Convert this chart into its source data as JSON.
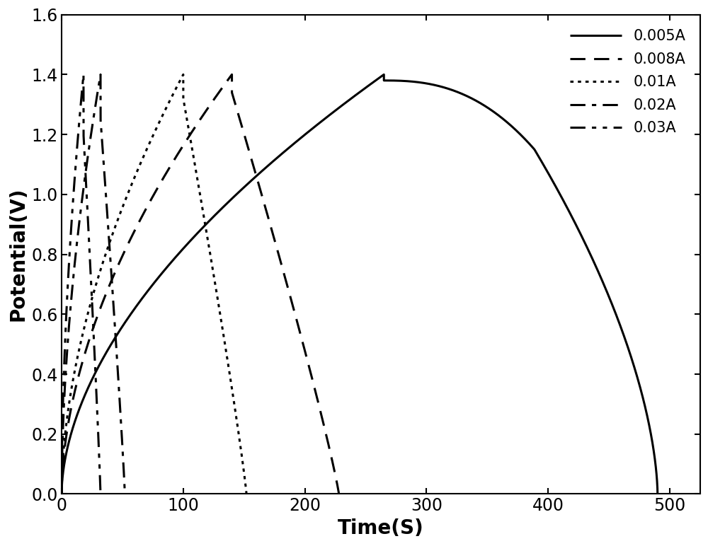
{
  "xlabel": "Time(S)",
  "ylabel": "Potential(V)",
  "xlim": [
    0,
    525
  ],
  "ylim": [
    0.0,
    1.6
  ],
  "xticks": [
    0,
    100,
    200,
    300,
    400,
    500
  ],
  "yticks": [
    0.0,
    0.2,
    0.4,
    0.6,
    0.8,
    1.0,
    1.2,
    1.4,
    1.6
  ],
  "curves": [
    {
      "label": "0.005A",
      "linestyle": "solid",
      "linewidth": 2.2,
      "color": "#000000",
      "charge_end": 265,
      "discharge_end": 490,
      "v_max": 1.4,
      "ir_drop": 0.02,
      "charge_exp": 4.0,
      "discharge_power": 1.0
    },
    {
      "label": "0.008A",
      "linestyle": "dashed",
      "linewidth": 2.2,
      "color": "#000000",
      "charge_end": 140,
      "discharge_end": 228,
      "v_max": 1.4,
      "ir_drop": 0.06,
      "charge_exp": 4.0,
      "discharge_power": 1.0
    },
    {
      "label": "0.01A",
      "linestyle": "dotted",
      "linewidth": 2.2,
      "color": "#000000",
      "charge_end": 100,
      "discharge_end": 152,
      "v_max": 1.4,
      "ir_drop": 0.08,
      "charge_exp": 4.0,
      "discharge_power": 1.0
    },
    {
      "label": "0.02A",
      "linestyle": "dashdot",
      "linewidth": 2.2,
      "color": "#000000",
      "charge_end": 32,
      "discharge_end": 52,
      "v_max": 1.4,
      "ir_drop": 0.15,
      "charge_exp": 4.0,
      "discharge_power": 1.0
    },
    {
      "label": "0.03A",
      "linestyle": "dashdotdotted",
      "linewidth": 2.2,
      "color": "#000000",
      "charge_end": 18,
      "discharge_end": 32,
      "v_max": 1.4,
      "ir_drop": 0.2,
      "charge_exp": 4.0,
      "discharge_power": 1.0
    }
  ],
  "background_color": "#ffffff",
  "label_fontsize": 20,
  "tick_fontsize": 17,
  "legend_fontsize": 15
}
